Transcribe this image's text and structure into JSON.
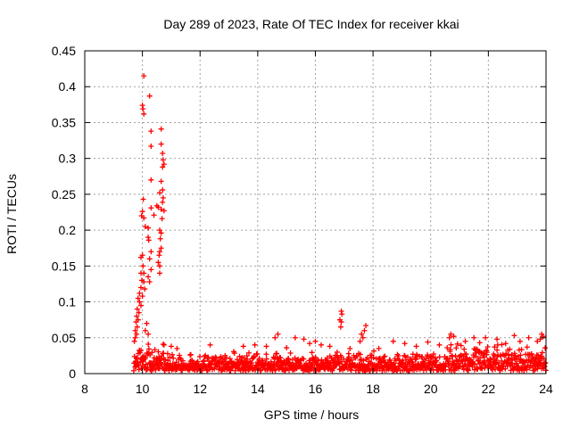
{
  "chart_data": {
    "type": "scatter",
    "title": "Day 289 of 2023, Rate Of TEC Index for receiver kkai",
    "xlabel": "GPS time / hours",
    "ylabel": "ROTI / TECUs",
    "xlim": [
      8,
      24
    ],
    "ylim": [
      0,
      0.45
    ],
    "xticks": [
      8,
      10,
      12,
      14,
      16,
      18,
      20,
      22,
      24
    ],
    "yticks": [
      0,
      0.05,
      0.1,
      0.15,
      0.2,
      0.25,
      0.3,
      0.35,
      0.4,
      0.45
    ],
    "xtick_labels": [
      "8",
      "10",
      "12",
      "14",
      "16",
      "18",
      "20",
      "22",
      "24"
    ],
    "ytick_labels": [
      "0",
      "0.05",
      "0.1",
      "0.15",
      "0.2",
      "0.25",
      "0.3",
      "0.35",
      "0.4",
      "0.45"
    ],
    "grid": true,
    "marker": "+",
    "color": "#ff0000",
    "series": [
      {
        "name": "ROTI",
        "points": [
          [
            10.05,
            0.415
          ],
          [
            10.25,
            0.387
          ],
          [
            10.0,
            0.374
          ],
          [
            10.02,
            0.369
          ],
          [
            10.05,
            0.362
          ],
          [
            10.65,
            0.341
          ],
          [
            10.3,
            0.338
          ],
          [
            10.65,
            0.32
          ],
          [
            10.3,
            0.317
          ],
          [
            10.7,
            0.307
          ],
          [
            10.72,
            0.298
          ],
          [
            10.75,
            0.292
          ],
          [
            10.7,
            0.288
          ],
          [
            10.3,
            0.27
          ],
          [
            10.65,
            0.268
          ],
          [
            10.7,
            0.256
          ],
          [
            10.6,
            0.252
          ],
          [
            10.72,
            0.245
          ],
          [
            10.03,
            0.243
          ],
          [
            10.7,
            0.239
          ],
          [
            10.5,
            0.234
          ],
          [
            10.55,
            0.232
          ],
          [
            10.3,
            0.231
          ],
          [
            10.65,
            0.229
          ],
          [
            10.75,
            0.227
          ],
          [
            10.0,
            0.226
          ],
          [
            9.97,
            0.22
          ],
          [
            10.4,
            0.221
          ],
          [
            10.05,
            0.217
          ],
          [
            10.68,
            0.216
          ],
          [
            10.1,
            0.205
          ],
          [
            10.2,
            0.203
          ],
          [
            10.6,
            0.2
          ],
          [
            10.65,
            0.196
          ],
          [
            10.62,
            0.188
          ],
          [
            10.2,
            0.19
          ],
          [
            10.22,
            0.186
          ],
          [
            10.65,
            0.175
          ],
          [
            10.6,
            0.17
          ],
          [
            10.3,
            0.17
          ],
          [
            10.0,
            0.165
          ],
          [
            10.58,
            0.165
          ],
          [
            9.95,
            0.162
          ],
          [
            10.25,
            0.16
          ],
          [
            10.55,
            0.155
          ],
          [
            10.6,
            0.15
          ],
          [
            10.02,
            0.15
          ],
          [
            10.3,
            0.145
          ],
          [
            9.95,
            0.14
          ],
          [
            10.05,
            0.14
          ],
          [
            10.6,
            0.14
          ],
          [
            10.2,
            0.135
          ],
          [
            9.98,
            0.13
          ],
          [
            10.05,
            0.128
          ],
          [
            10.25,
            0.128
          ],
          [
            9.95,
            0.12
          ],
          [
            10.08,
            0.118
          ],
          [
            9.9,
            0.112
          ],
          [
            10.0,
            0.108
          ],
          [
            9.85,
            0.105
          ],
          [
            9.9,
            0.1
          ],
          [
            9.95,
            0.095
          ],
          [
            9.82,
            0.09
          ],
          [
            9.88,
            0.085
          ],
          [
            9.8,
            0.08
          ],
          [
            9.85,
            0.075
          ],
          [
            9.78,
            0.072
          ],
          [
            9.82,
            0.065
          ],
          [
            9.75,
            0.06
          ],
          [
            9.8,
            0.055
          ],
          [
            9.75,
            0.05
          ],
          [
            9.72,
            0.045
          ],
          [
            10.15,
            0.07
          ],
          [
            10.1,
            0.06
          ],
          [
            10.2,
            0.055
          ],
          [
            16.9,
            0.087
          ],
          [
            16.92,
            0.083
          ],
          [
            16.85,
            0.075
          ],
          [
            16.9,
            0.072
          ],
          [
            16.88,
            0.065
          ],
          [
            17.75,
            0.067
          ],
          [
            17.7,
            0.06
          ],
          [
            17.6,
            0.055
          ],
          [
            17.65,
            0.05
          ],
          [
            17.55,
            0.045
          ],
          [
            14.7,
            0.055
          ],
          [
            14.6,
            0.05
          ],
          [
            15.3,
            0.05
          ],
          [
            15.6,
            0.048
          ],
          [
            16.0,
            0.045
          ],
          [
            15.8,
            0.042
          ],
          [
            16.2,
            0.04
          ],
          [
            16.5,
            0.038
          ],
          [
            18.7,
            0.045
          ],
          [
            19.1,
            0.042
          ],
          [
            19.9,
            0.044
          ],
          [
            20.7,
            0.055
          ],
          [
            20.8,
            0.052
          ],
          [
            20.65,
            0.05
          ],
          [
            21.5,
            0.05
          ],
          [
            21.9,
            0.05
          ],
          [
            22.3,
            0.048
          ],
          [
            22.9,
            0.053
          ],
          [
            23.4,
            0.05
          ],
          [
            23.85,
            0.055
          ],
          [
            23.9,
            0.052
          ],
          [
            23.8,
            0.048
          ],
          [
            23.7,
            0.045
          ],
          [
            21.2,
            0.045
          ],
          [
            21.7,
            0.043
          ],
          [
            10.75,
            0.04
          ],
          [
            11.0,
            0.038
          ],
          [
            11.2,
            0.035
          ],
          [
            12.35,
            0.04
          ],
          [
            13.5,
            0.038
          ],
          [
            13.9,
            0.04
          ],
          [
            14.3,
            0.038
          ],
          [
            15.0,
            0.036
          ],
          [
            17.2,
            0.035
          ],
          [
            18.2,
            0.035
          ],
          [
            19.5,
            0.038
          ],
          [
            20.3,
            0.04
          ],
          [
            22.6,
            0.042
          ],
          [
            23.1,
            0.045
          ]
        ]
      }
    ]
  }
}
